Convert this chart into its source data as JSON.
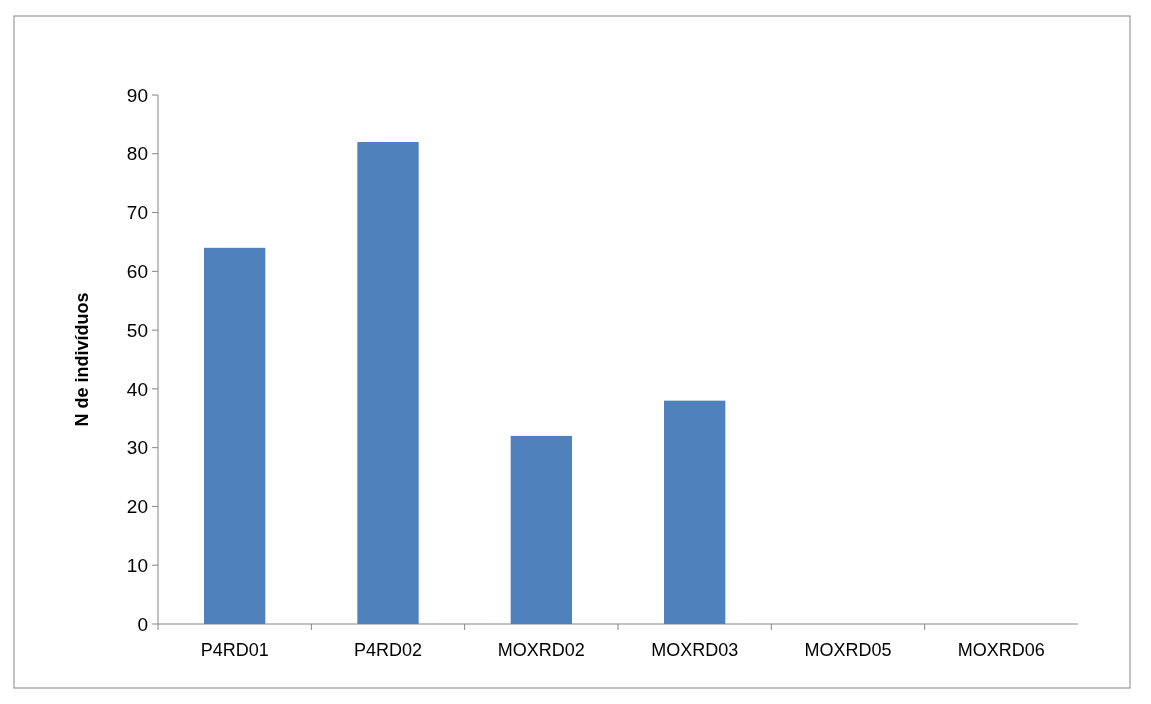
{
  "chart_data": {
    "type": "bar",
    "ylabel": "N de indivíduos",
    "categories": [
      "P4RD01",
      "P4RD02",
      "MOXRD02",
      "MOXRD03",
      "MOXRD05",
      "MOXRD06"
    ],
    "values": [
      64,
      82,
      32,
      38,
      0,
      0
    ],
    "color": "#4f81bd",
    "ylim": [
      0,
      90
    ],
    "yticks": [
      0,
      10,
      20,
      30,
      40,
      50,
      60,
      70,
      80,
      90
    ],
    "grid": false
  }
}
